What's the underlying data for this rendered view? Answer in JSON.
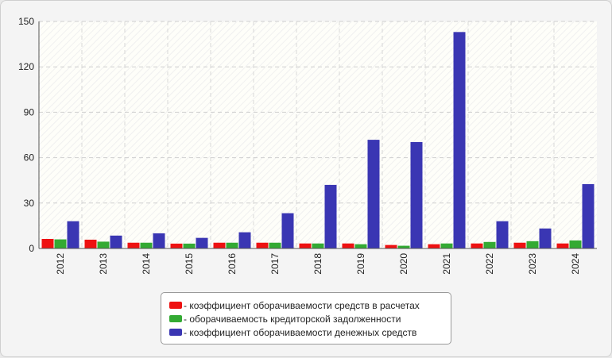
{
  "chart_data": {
    "type": "bar",
    "categories": [
      "2012",
      "2013",
      "2014",
      "2015",
      "2016",
      "2017",
      "2018",
      "2019",
      "2020",
      "2021",
      "2022",
      "2023",
      "2024"
    ],
    "series": [
      {
        "name": "коэффициент оборачиваемости средств в расчетах",
        "color": "#ee1111",
        "values": [
          6.3,
          5.8,
          3.8,
          3.2,
          3.8,
          3.8,
          3.3,
          3.3,
          2.3,
          2.8,
          3.3,
          3.8,
          3.3
        ]
      },
      {
        "name": "оборачиваемость кредиторской задолженности",
        "color": "#33aa33",
        "values": [
          6.0,
          4.5,
          3.8,
          3.2,
          3.8,
          3.8,
          3.3,
          2.8,
          1.8,
          3.3,
          4.3,
          4.8,
          5.3
        ]
      },
      {
        "name": "коэффициент оборачиваемости денежных средств",
        "color": "#3a36b3",
        "values": [
          18.0,
          8.5,
          10.0,
          7.0,
          10.7,
          23.3,
          42.0,
          71.8,
          70.3,
          143.0,
          18.0,
          13.2,
          42.5
        ]
      }
    ],
    "y_ticks": [
      "0",
      "30",
      "60",
      "90",
      "120",
      "150"
    ],
    "ylim": [
      0,
      150
    ],
    "grid": true,
    "legend_position": "bottom-center",
    "title": "",
    "xlabel": "",
    "ylabel": ""
  }
}
